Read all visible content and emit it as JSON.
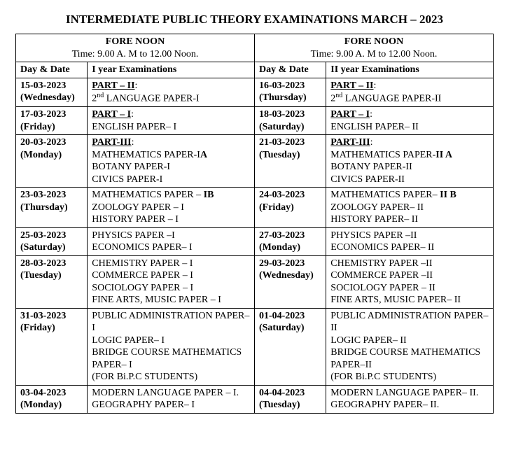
{
  "title": "INTERMEDIATE PUBLIC THEORY EXAMINATIONS MARCH – 2023",
  "session": {
    "heading": "FORE NOON",
    "time": "Time: 9.00 A. M to 12.00 Noon."
  },
  "cols": {
    "dayDate": "Day & Date",
    "y1": "I year Examinations",
    "y2": "II year Examinations"
  },
  "rows": [
    {
      "d1": "15-03-2023",
      "w1": "(Wednesday)",
      "s1": "<span class='part'>PART – II</span>:<br>2<span class='sup'>nd</span> LANGUAGE PAPER-I",
      "d2": "16-03-2023",
      "w2": "(Thursday)",
      "s2": "<span class='part'>PART – II</span>:<br>2<span class='sup'>nd</span> LANGUAGE PAPER-II"
    },
    {
      "d1": "17-03-2023",
      "w1": "(Friday)",
      "s1": "<span class='part'>PART – I</span>:<br>ENGLISH PAPER– I",
      "d2": "18-03-2023",
      "w2": "(Saturday)",
      "s2": "<span class='part'>PART – I</span>:<br>ENGLISH PAPER– II"
    },
    {
      "d1": "20-03-2023",
      "w1": "(Monday)",
      "s1": "<span class='part'>PART-III</span>:<br>MATHEMATICS PAPER-I<b>A</b><br>BOTANY PAPER-I<br>CIVICS PAPER-I",
      "d2": "21-03-2023",
      "w2": "(Tuesday)",
      "s2": "<span class='part'>PART-III</span>:<br>MATHEMATICS PAPER-<b>II A</b><br>BOTANY PAPER-II<br>CIVICS PAPER-II"
    },
    {
      "d1": "23-03-2023",
      "w1": "(Thursday)",
      "s1": "MATHEMATICS PAPER – <b>IB</b><br>ZOOLOGY PAPER – I<br>HISTORY PAPER – I",
      "d2": "24-03-2023",
      "w2": "(Friday)",
      "s2": "MATHEMATICS PAPER– <b>II B</b><br>ZOOLOGY PAPER– II<br>HISTORY PAPER– II"
    },
    {
      "d1": "25-03-2023",
      "w1": "(Saturday)",
      "s1": "PHYSICS PAPER –I<br>ECONOMICS PAPER– I",
      "d2": "27-03-2023",
      "w2": "(Monday)",
      "s2": "PHYSICS PAPER –II<br>ECONOMICS PAPER– II"
    },
    {
      "d1": "28-03-2023",
      "w1": "(Tuesday)",
      "s1": "CHEMISTRY PAPER – I<br>COMMERCE PAPER – I<br>SOCIOLOGY PAPER – I<br>FINE ARTS, MUSIC PAPER – I",
      "d2": "29-03-2023",
      "w2": "(Wednesday)",
      "s2": "CHEMISTRY  PAPER –II<br>COMMERCE  PAPER –II<br>SOCIOLOGY  PAPER – II<br>FINE ARTS, MUSIC PAPER– II"
    },
    {
      "d1": "31-03-2023",
      "w1": "(Friday)",
      "s1": "PUBLIC ADMINISTRATION PAPER–I<br>LOGIC PAPER– I<br>BRIDGE COURSE MATHEMATICS PAPER– I<br>(FOR Bi.P.C STUDENTS)",
      "d2": "01-04-2023",
      "w2": "(Saturday)",
      "s2": "PUBLIC ADMINISTRATION PAPER–II<br>LOGIC PAPER– II<br>BRIDGE COURSE MATHEMATICS PAPER–II<br>(FOR Bi.P.C STUDENTS)"
    },
    {
      "d1": "03-04-2023",
      "w1": "(Monday)",
      "s1": "MODERN LANGUAGE PAPER – I.<br>GEOGRAPHY PAPER– I",
      "d2": "04-04-2023",
      "w2": "(Tuesday)",
      "s2": "MODERN LANGUAGE PAPER– II.<br>GEOGRAPHY PAPER– II."
    }
  ]
}
